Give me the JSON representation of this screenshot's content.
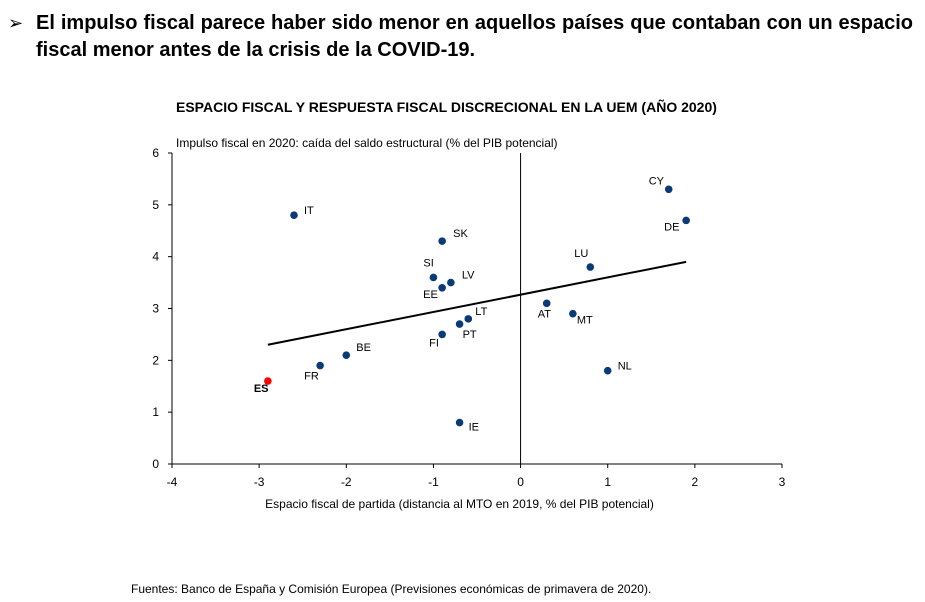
{
  "heading": {
    "bullet": "➢",
    "text": "El impulso fiscal parece haber sido menor en aquellos países que contaban con un espacio fiscal menor antes de la crisis de la COVID-19."
  },
  "source": "Fuentes: Banco de España y Comisión Europea (Previsiones económicas de primavera de 2020).",
  "colors": {
    "point": "#0b3a78",
    "highlight": "#ff0000",
    "axis": "#000000",
    "trend": "#000000"
  },
  "chart_data": {
    "type": "scatter",
    "title": "ESPACIO FISCAL Y RESPUESTA FISCAL DISCRECIONAL EN LA UEM (AÑO 2020)",
    "ylabel": "Impulso fiscal en 2020: caída del saldo estructural (% del PIB potencial)",
    "xlabel": "Espacio fiscal de partida (distancia al MTO en 2019, % del PIB potencial)",
    "xlim": [
      -4,
      3
    ],
    "ylim": [
      0,
      6
    ],
    "xticks": [
      "-4",
      "-3",
      "-2",
      "-1",
      "0",
      "1",
      "2",
      "3"
    ],
    "yticks": [
      "0",
      "1",
      "2",
      "3",
      "4",
      "5",
      "6"
    ],
    "points": [
      {
        "label": "IT",
        "x": -2.6,
        "y": 4.8
      },
      {
        "label": "SK",
        "x": -0.9,
        "y": 4.3
      },
      {
        "label": "SI",
        "x": -1.0,
        "y": 3.6
      },
      {
        "label": "LV",
        "x": -0.8,
        "y": 3.5
      },
      {
        "label": "EE",
        "x": -0.9,
        "y": 3.4
      },
      {
        "label": "LT",
        "x": -0.6,
        "y": 2.8
      },
      {
        "label": "PT",
        "x": -0.7,
        "y": 2.7
      },
      {
        "label": "FI",
        "x": -0.9,
        "y": 2.5
      },
      {
        "label": "BE",
        "x": -2.0,
        "y": 2.1
      },
      {
        "label": "FR",
        "x": -2.3,
        "y": 1.9
      },
      {
        "label": "ES",
        "x": -2.9,
        "y": 1.6,
        "highlight": true
      },
      {
        "label": "IE",
        "x": -0.7,
        "y": 0.8
      },
      {
        "label": "CY",
        "x": 1.7,
        "y": 5.3
      },
      {
        "label": "DE",
        "x": 1.9,
        "y": 4.7
      },
      {
        "label": "LU",
        "x": 0.8,
        "y": 3.8
      },
      {
        "label": "AT",
        "x": 0.3,
        "y": 3.1
      },
      {
        "label": "MT",
        "x": 0.6,
        "y": 2.9
      },
      {
        "label": "NL",
        "x": 1.0,
        "y": 1.8
      }
    ],
    "trendline": {
      "from": {
        "x": -2.9,
        "y": 2.3
      },
      "to": {
        "x": 1.9,
        "y": 3.9
      }
    }
  }
}
